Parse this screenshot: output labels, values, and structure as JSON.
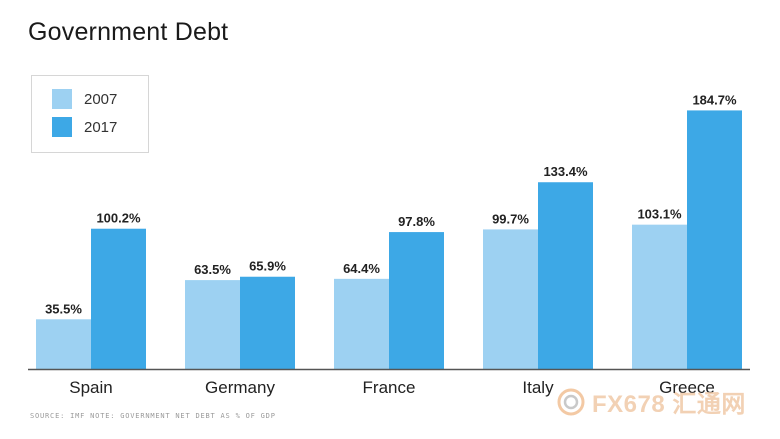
{
  "title": "Government Debt",
  "legend": [
    {
      "label": "2007",
      "color": "#9dd1f2"
    },
    {
      "label": "2017",
      "color": "#3da8e6"
    }
  ],
  "chart_data": {
    "type": "bar",
    "categories": [
      "Spain",
      "Germany",
      "France",
      "Italy",
      "Greece"
    ],
    "series": [
      {
        "name": "2007",
        "values": [
          35.5,
          63.5,
          64.4,
          99.7,
          103.1
        ],
        "labels": [
          "35.5%",
          "63.5%",
          "64.4%",
          "99.7%",
          "103.1%"
        ],
        "color": "#9dd1f2"
      },
      {
        "name": "2017",
        "values": [
          100.2,
          65.9,
          97.8,
          133.4,
          184.7
        ],
        "labels": [
          "100.2%",
          "65.9%",
          "97.8%",
          "133.4%",
          "184.7%"
        ],
        "color": "#3da8e6"
      }
    ],
    "ylim": [
      0,
      190
    ],
    "grid": false,
    "legend_position": "top-left"
  },
  "footer": {
    "source": "SOURCE: IMF    NOTE: GOVERNMENT NET DEBT AS % OF GDP"
  },
  "watermark": {
    "text": "FX678 汇通网"
  }
}
